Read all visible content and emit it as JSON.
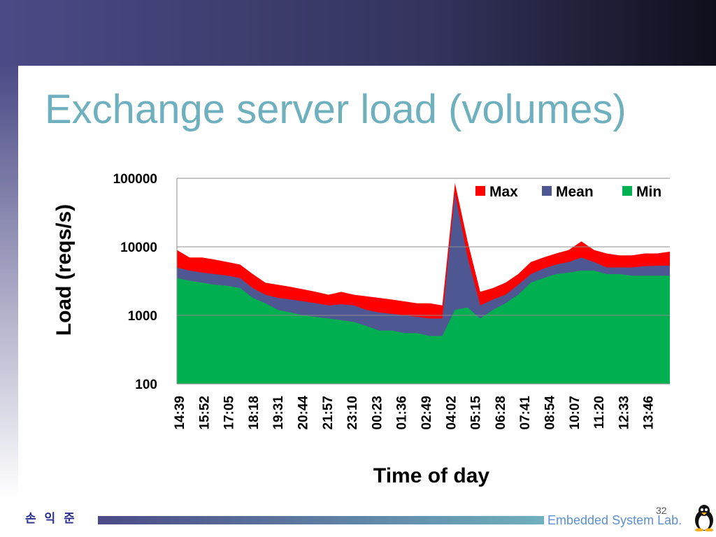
{
  "slide": {
    "title": "Exchange server load (volumes)",
    "footer_author": "손 익 준",
    "page_number": "32",
    "lab_name": "Embedded System Lab.",
    "colors": {
      "title": "#6fb0be",
      "banner": "#4b4a86",
      "footer_bar_start": "#4b4a86",
      "footer_bar_end": "#6fb0be"
    },
    "icons": [
      "penguin-logo-icon"
    ]
  },
  "chart_data": {
    "type": "area",
    "title": "",
    "xlabel": "Time of day",
    "ylabel": "Load  (reqs/s)",
    "yscale": "log",
    "ylim": [
      100,
      100000
    ],
    "yticks": [
      "100",
      "1000",
      "10000",
      "100000"
    ],
    "xticks": [
      "14:39",
      "15:52",
      "17:05",
      "18:18",
      "19:31",
      "20:44",
      "21:57",
      "23:10",
      "00:23",
      "01:36",
      "02:49",
      "04:02",
      "05:15",
      "06:28",
      "07:41",
      "08:54",
      "10:07",
      "11:20",
      "12:33",
      "13:46"
    ],
    "x": [
      "14:39",
      "15:15",
      "15:52",
      "16:28",
      "17:05",
      "17:41",
      "18:18",
      "18:54",
      "19:31",
      "20:07",
      "20:44",
      "21:20",
      "21:57",
      "22:33",
      "23:10",
      "23:46",
      "00:23",
      "00:59",
      "01:36",
      "02:12",
      "02:49",
      "03:25",
      "04:02",
      "04:38",
      "05:15",
      "05:51",
      "06:28",
      "07:04",
      "07:41",
      "08:17",
      "08:54",
      "09:30",
      "10:07",
      "10:43",
      "11:20",
      "11:56",
      "12:33",
      "13:09",
      "13:46",
      "14:22"
    ],
    "series": [
      {
        "name": "Max",
        "color": "#ff0000",
        "values": [
          9000,
          7000,
          7000,
          6500,
          6000,
          5500,
          4000,
          3000,
          2800,
          2600,
          2400,
          2200,
          2000,
          2200,
          2000,
          1900,
          1800,
          1700,
          1600,
          1500,
          1500,
          1400,
          85000,
          12000,
          2200,
          2500,
          3000,
          4000,
          6000,
          7000,
          8000,
          9000,
          12000,
          9000,
          8000,
          7500,
          7500,
          8000,
          8000,
          8500
        ]
      },
      {
        "name": "Mean",
        "color": "#4e5791",
        "values": [
          5000,
          4500,
          4200,
          4000,
          3800,
          3500,
          2500,
          2000,
          1800,
          1700,
          1600,
          1500,
          1400,
          1450,
          1400,
          1200,
          1100,
          1050,
          1000,
          950,
          900,
          900,
          60000,
          7000,
          1400,
          1700,
          2000,
          2800,
          4000,
          4800,
          5500,
          6000,
          7000,
          6000,
          5000,
          5000,
          5000,
          5200,
          5300,
          5300
        ]
      },
      {
        "name": "Min",
        "color": "#00b050",
        "values": [
          3500,
          3200,
          3000,
          2800,
          2700,
          2500,
          1800,
          1500,
          1200,
          1100,
          1000,
          950,
          900,
          850,
          800,
          700,
          600,
          600,
          550,
          550,
          500,
          500,
          1200,
          1300,
          900,
          1200,
          1500,
          2000,
          3000,
          3500,
          4000,
          4200,
          4500,
          4500,
          4000,
          4000,
          3800,
          3800,
          3800,
          3800
        ]
      }
    ],
    "legend": "top-right",
    "grid": true
  }
}
